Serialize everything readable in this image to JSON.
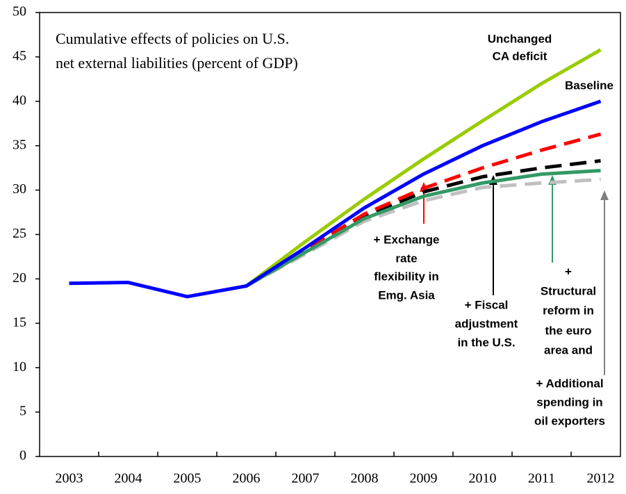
{
  "chart_data": {
    "type": "line",
    "title": [
      "Cumulative effects of policies on U.S.",
      "net external liabilities (percent of GDP)"
    ],
    "categories": [
      "2003",
      "2004",
      "2005",
      "2006",
      "2007",
      "2008",
      "2009",
      "2010",
      "2011",
      "2012"
    ],
    "ylim": [
      0,
      50
    ],
    "yticks": [
      0,
      5,
      10,
      15,
      20,
      25,
      30,
      35,
      40,
      45,
      50
    ],
    "series": [
      {
        "name": "Baseline",
        "label": [
          "Baseline"
        ],
        "color": "#0000ff",
        "dashed": false,
        "values": [
          19.5,
          19.6,
          18.0,
          19.2,
          23.5,
          28.0,
          31.8,
          35.0,
          37.7,
          40.0
        ]
      },
      {
        "name": "Unchanged CA deficit",
        "label": [
          "Unchanged",
          "CA deficit"
        ],
        "color": "#99cc00",
        "dashed": false,
        "values": [
          null,
          null,
          null,
          19.2,
          24.2,
          29.0,
          33.5,
          37.8,
          42.0,
          45.8
        ]
      },
      {
        "name": "+ Exchange rate flexibility in Emg. Asia",
        "label": [
          "+ Exchange",
          "rate",
          "flexibility in",
          "Emg. Asia"
        ],
        "color": "#ff0000",
        "dashed": true,
        "values": [
          null,
          null,
          null,
          19.2,
          23.3,
          27.3,
          30.2,
          32.5,
          34.5,
          36.3
        ]
      },
      {
        "name": "+ Fiscal adjustment in the U.S.",
        "label": [
          "+ Fiscal",
          "adjustment",
          "in the U.S."
        ],
        "color": "#000000",
        "dashed": true,
        "values": [
          null,
          null,
          null,
          19.2,
          23.2,
          27.0,
          29.8,
          31.5,
          32.5,
          33.3
        ]
      },
      {
        "name": "+ Additional spending in oil exporters",
        "label": [
          "+ Additional",
          "spending in",
          "oil exporters"
        ],
        "color": "#c0c0c0",
        "dashed": true,
        "values": [
          null,
          null,
          null,
          19.2,
          22.8,
          26.5,
          28.8,
          30.3,
          30.8,
          31.2
        ]
      },
      {
        "name": "+ Structural reform in the euro area and",
        "label": [
          "+",
          "Structural",
          "reform in",
          "the euro",
          "area and"
        ],
        "color": "#339966",
        "dashed": false,
        "values": [
          null,
          null,
          null,
          19.2,
          23.0,
          26.8,
          29.3,
          30.8,
          31.8,
          32.2
        ]
      }
    ]
  }
}
